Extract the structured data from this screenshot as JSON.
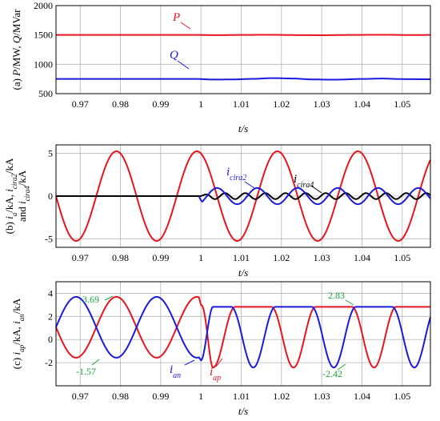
{
  "chart_data": [
    {
      "type": "line",
      "panel_label": "(a)",
      "ylabel_parts": [
        "(a) ",
        "P",
        "/MW, ",
        "Q",
        "/MVar"
      ],
      "xlabel": "t/s",
      "xlim": [
        0.964,
        1.057
      ],
      "ylim": [
        500,
        2000
      ],
      "yticks": [
        500,
        1000,
        1500,
        2000
      ],
      "ytick_labels": [
        "500",
        "1000",
        "1500",
        "2000"
      ],
      "xticks": [
        0.97,
        0.98,
        0.99,
        1.0,
        1.01,
        1.02,
        1.03,
        1.04,
        1.05
      ],
      "xtick_labels": [
        "0.97",
        "0.98",
        "0.99",
        "1",
        "1.01",
        "1.02",
        "1.03",
        "1.04",
        "1.05"
      ],
      "grid": true,
      "series": [
        {
          "name": "P",
          "color": "#e8141e",
          "x": [
            0.964,
            0.999,
            1.004,
            1.01,
            1.017,
            1.023,
            1.03,
            1.037,
            1.045,
            1.052,
            1.057
          ],
          "y": [
            1500,
            1500,
            1497,
            1500,
            1503,
            1498,
            1496,
            1500,
            1503,
            1499,
            1500
          ]
        },
        {
          "name": "Q",
          "color": "#1a1adf",
          "x": [
            0.964,
            0.999,
            1.003,
            1.008,
            1.013,
            1.018,
            1.023,
            1.028,
            1.033,
            1.04,
            1.045,
            1.05,
            1.057
          ],
          "y": [
            750,
            750,
            740,
            742,
            752,
            765,
            757,
            742,
            738,
            750,
            757,
            748,
            745
          ]
        }
      ],
      "labels": [
        {
          "text": "P",
          "series": "P"
        },
        {
          "text": "Q",
          "series": "Q"
        }
      ]
    },
    {
      "type": "line",
      "panel_label": "(b)",
      "ylabel_line1": [
        "(b) ",
        "i",
        "a",
        "/kA, ",
        "i",
        "cira2",
        "/kA"
      ],
      "ylabel_line2": [
        "and  ",
        "i",
        "cira4",
        "/kA"
      ],
      "xlabel": "t/s",
      "xlim": [
        0.964,
        1.057
      ],
      "ylim": [
        -6,
        6
      ],
      "yticks": [
        -5,
        0,
        5
      ],
      "ytick_labels": [
        "-5",
        "0",
        "5"
      ],
      "xticks": [
        0.97,
        0.98,
        0.99,
        1.0,
        1.01,
        1.02,
        1.03,
        1.04,
        1.05
      ],
      "xtick_labels": [
        "0.97",
        "0.98",
        "0.99",
        "1",
        "1.01",
        "1.02",
        "1.03",
        "1.04",
        "1.05"
      ],
      "grid": true,
      "series": [
        {
          "name": "i_a",
          "color": "#e8141e",
          "waveform": "sine",
          "amplitude": 5.25,
          "period": 0.02,
          "peak_time": 0.979
        },
        {
          "name": "i_cira2",
          "color": "#1a1adf",
          "waveform": "sine",
          "start": 0.9995,
          "amplitude": 0.95,
          "period": 0.01,
          "peak_time": 1.004
        },
        {
          "name": "i_cira4",
          "color": "#000000",
          "waveform": "sine",
          "start": 0.9995,
          "amplitude": 0.35,
          "period": 0.005,
          "peak_time": 1.011
        }
      ],
      "labels": [
        {
          "base": "i",
          "sub": "cira2",
          "series": "i_cira2"
        },
        {
          "base": "i",
          "sub": "cira4",
          "series": "i_cira4"
        }
      ]
    },
    {
      "type": "line",
      "panel_label": "(c)",
      "ylabel_parts": [
        "(c) ",
        "i",
        "ap",
        "/kA, ",
        "i",
        "an",
        "/kA"
      ],
      "xlabel": "t/s",
      "xlim": [
        0.964,
        1.057
      ],
      "ylim": [
        -4,
        5
      ],
      "yticks": [
        -2,
        0,
        2,
        4
      ],
      "ytick_labels": [
        "-2",
        "0",
        "2",
        "4"
      ],
      "xticks": [
        0.97,
        0.98,
        0.99,
        1.0,
        1.01,
        1.02,
        1.03,
        1.04,
        1.05
      ],
      "xtick_labels": [
        "0.97",
        "0.98",
        "0.99",
        "1",
        "1.01",
        "1.02",
        "1.03",
        "1.04",
        "1.05"
      ],
      "grid": true,
      "series": [
        {
          "name": "i_ap",
          "color": "#e8141e",
          "before": {
            "offset": 1.06,
            "amplitude": 2.63,
            "period": 0.02,
            "peak_time": 0.979
          },
          "after": {
            "high": 2.83,
            "low": -2.42,
            "period": 0.02,
            "flat_start": 1.0285
          }
        },
        {
          "name": "i_an",
          "color": "#1a1adf",
          "before": {
            "offset": 1.06,
            "amplitude": 2.63,
            "period": 0.02,
            "peak_time": 0.969
          },
          "after": {
            "high": 2.83,
            "low": -2.42,
            "period": 0.02,
            "flat_start": 1.0185
          }
        }
      ],
      "annotations": [
        "3.69",
        "-1.57",
        "2.83",
        "-2.42"
      ],
      "labels": [
        {
          "base": "i",
          "sub": "an",
          "series": "i_an"
        },
        {
          "base": "i",
          "sub": "ap",
          "series": "i_ap"
        }
      ]
    }
  ],
  "colors": {
    "red": "#e8141e",
    "blue": "#1a1adf",
    "green": "#1aa33a",
    "grid": "#b4b4b4"
  }
}
